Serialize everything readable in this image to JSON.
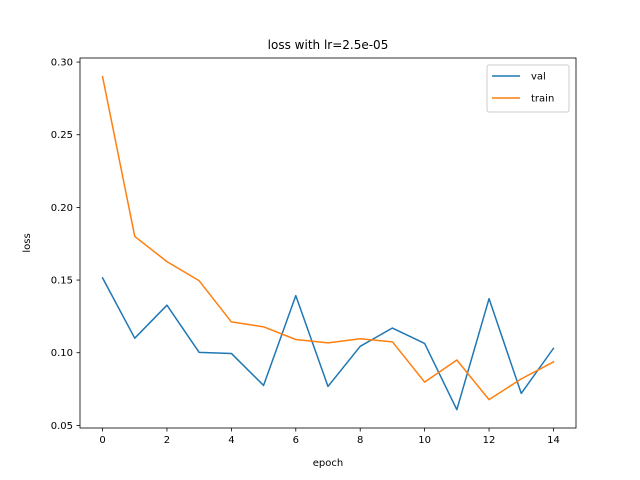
{
  "chart_data": {
    "type": "line",
    "title": "loss with lr=2.5e-05",
    "xlabel": "epoch",
    "ylabel": "loss",
    "x": [
      0,
      1,
      2,
      3,
      4,
      5,
      6,
      7,
      8,
      9,
      10,
      11,
      12,
      13,
      14
    ],
    "xlim": [
      -0.7,
      14.7
    ],
    "ylim": [
      0.0482,
      0.3028
    ],
    "xticks": [
      0,
      2,
      4,
      6,
      8,
      10,
      12,
      14
    ],
    "yticks": [
      0.05,
      0.1,
      0.15,
      0.2,
      0.25,
      0.3
    ],
    "xtick_labels": [
      "0",
      "2",
      "4",
      "6",
      "8",
      "10",
      "12",
      "14"
    ],
    "ytick_labels": [
      "0.05",
      "0.10",
      "0.15",
      "0.20",
      "0.25",
      "0.30"
    ],
    "grid": false,
    "legend_position": "upper right",
    "series": [
      {
        "name": "val",
        "color": "#1f77b4",
        "values": [
          0.1515,
          0.11,
          0.1327,
          0.1002,
          0.0995,
          0.0775,
          0.1393,
          0.0768,
          0.1044,
          0.117,
          0.1064,
          0.0608,
          0.1372,
          0.072,
          0.103
        ]
      },
      {
        "name": "train",
        "color": "#ff7f0e",
        "values": [
          0.29,
          0.18,
          0.1627,
          0.1495,
          0.1212,
          0.1178,
          0.1091,
          0.1068,
          0.1096,
          0.1075,
          0.0798,
          0.095,
          0.0677,
          0.082,
          0.0937
        ]
      }
    ]
  }
}
